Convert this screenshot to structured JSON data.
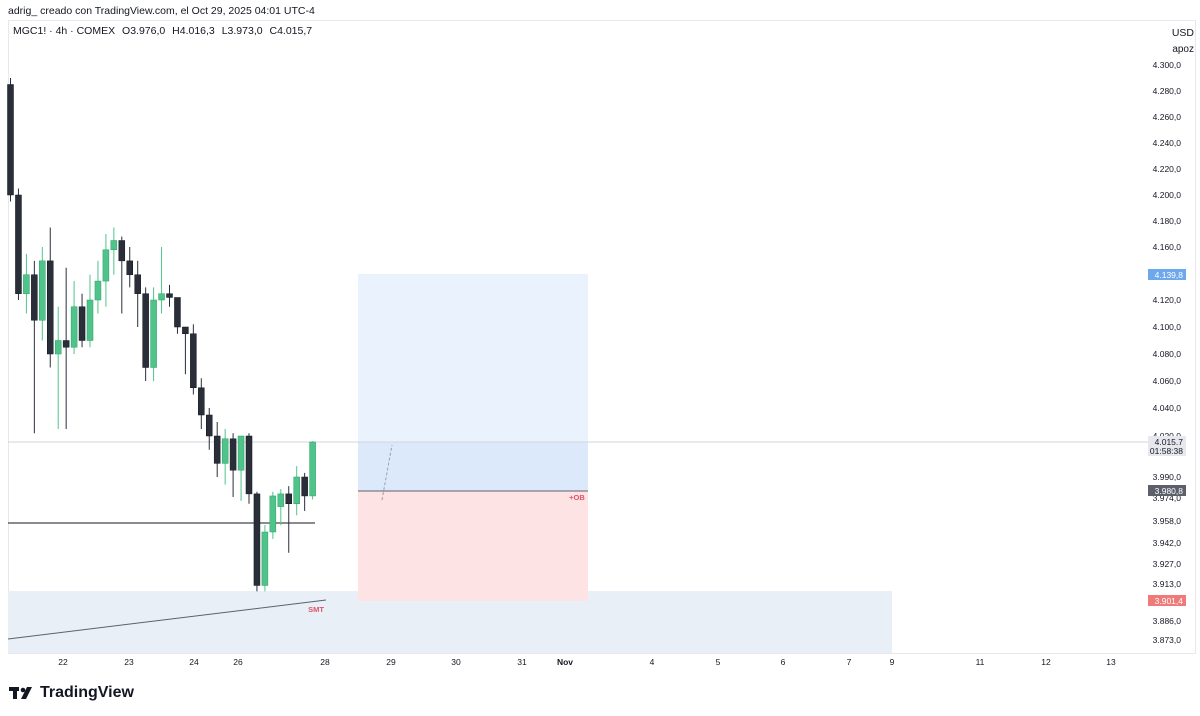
{
  "header": {
    "caption": "adrig_ creado con TradingView.com, el Oct 29, 2025 04:01 UTC-4"
  },
  "legend": {
    "symbol": "MGC1! · 4h · COMEX",
    "open": "O3.976,0",
    "high": "H4.016,3",
    "low": "L3.973,0",
    "close": "C4.015,7"
  },
  "axis_header": {
    "currency": "USD",
    "label": "apoz"
  },
  "brand": {
    "name": "TradingView",
    "icon": "tradingview-logo-icon"
  },
  "colors": {
    "up": "#4fc48a",
    "down": "#2a2e39",
    "target_zone": "#dbe9fb",
    "stop_zone": "#fde3e3",
    "ob_label": "#e0536a",
    "smt_label": "#e0536a",
    "badge_blue": "#6ea8ec",
    "badge_dark": "#5d606b",
    "badge_red": "#f07a7a"
  },
  "chart_data": {
    "type": "candlestick",
    "timeframe": "4h",
    "yaxis_ticks": [
      "4.300,0",
      "4.280,0",
      "4.260,0",
      "4.240,0",
      "4.220,0",
      "4.200,0",
      "4.180,0",
      "4.160,0",
      "4.120,0",
      "4.100,0",
      "4.080,0",
      "4.060,0",
      "4.040,0",
      "4.020,0",
      "3.990,0",
      "3.974,0",
      "3.958,0",
      "3.942,0",
      "3.927,0",
      "3.913,0",
      "3.886,0",
      "3.873,0"
    ],
    "xaxis_ticks": [
      "22",
      "23",
      "24",
      "26",
      "28",
      "29",
      "30",
      "31",
      "Nov",
      "4",
      "5",
      "6",
      "7",
      "9",
      "11",
      "12",
      "13"
    ],
    "price_badges": [
      {
        "text": "4.139,8",
        "value": 4139.8,
        "style": "blue"
      },
      {
        "text": "4.015,7",
        "value": 4015.7,
        "style": "grey"
      },
      {
        "text": "01:58:38",
        "value": 4009,
        "style": "grey"
      },
      {
        "text": "3.980,8",
        "value": 3980.8,
        "style": "dark"
      },
      {
        "text": "3.901,4",
        "value": 3901.4,
        "style": "red"
      }
    ],
    "annotations": [
      {
        "text": "+OB",
        "value": 3980.8
      },
      {
        "text": "SMT",
        "value": 3897
      }
    ],
    "candles": [
      {
        "o": 4285,
        "h": 4290,
        "l": 4195,
        "c": 4200
      },
      {
        "o": 4200,
        "h": 4205,
        "l": 4120,
        "c": 4125
      },
      {
        "o": 4125,
        "h": 4155,
        "l": 4110,
        "c": 4140
      },
      {
        "o": 4140,
        "h": 4150,
        "l": 4022,
        "c": 4105
      },
      {
        "o": 4105,
        "h": 4160,
        "l": 4090,
        "c": 4150
      },
      {
        "o": 4150,
        "h": 4175,
        "l": 4070,
        "c": 4080
      },
      {
        "o": 4080,
        "h": 4115,
        "l": 4025,
        "c": 4090
      },
      {
        "o": 4090,
        "h": 4145,
        "l": 4025,
        "c": 4085
      },
      {
        "o": 4085,
        "h": 4135,
        "l": 4080,
        "c": 4115
      },
      {
        "o": 4115,
        "h": 4125,
        "l": 4085,
        "c": 4090
      },
      {
        "o": 4090,
        "h": 4140,
        "l": 4085,
        "c": 4120
      },
      {
        "o": 4120,
        "h": 4150,
        "l": 4110,
        "c": 4135
      },
      {
        "o": 4135,
        "h": 4170,
        "l": 4115,
        "c": 4158
      },
      {
        "o": 4158,
        "h": 4175,
        "l": 4140,
        "c": 4165
      },
      {
        "o": 4165,
        "h": 4168,
        "l": 4110,
        "c": 4150
      },
      {
        "o": 4150,
        "h": 4160,
        "l": 4130,
        "c": 4140
      },
      {
        "o": 4140,
        "h": 4150,
        "l": 4100,
        "c": 4125
      },
      {
        "o": 4125,
        "h": 4130,
        "l": 4060,
        "c": 4070
      },
      {
        "o": 4070,
        "h": 4130,
        "l": 4060,
        "c": 4120
      },
      {
        "o": 4120,
        "h": 4160,
        "l": 4110,
        "c": 4125
      },
      {
        "o": 4125,
        "h": 4132,
        "l": 4115,
        "c": 4122
      },
      {
        "o": 4122,
        "h": 4120,
        "l": 4095,
        "c": 4100
      },
      {
        "o": 4100,
        "h": 4098,
        "l": 4065,
        "c": 4095
      },
      {
        "o": 4095,
        "h": 4102,
        "l": 4050,
        "c": 4055
      },
      {
        "o": 4055,
        "h": 4062,
        "l": 4025,
        "c": 4035
      },
      {
        "o": 4035,
        "h": 4040,
        "l": 4010,
        "c": 4020
      },
      {
        "o": 4020,
        "h": 4030,
        "l": 3990,
        "c": 4000
      },
      {
        "o": 4000,
        "h": 4025,
        "l": 3985,
        "c": 4018
      },
      {
        "o": 4018,
        "h": 4022,
        "l": 3975,
        "c": 3995
      },
      {
        "o": 3995,
        "h": 4020,
        "l": 3972,
        "c": 4020
      },
      {
        "o": 4020,
        "h": 4022,
        "l": 3970,
        "c": 3978
      },
      {
        "o": 3978,
        "h": 3980,
        "l": 3908,
        "c": 3912
      },
      {
        "o": 3912,
        "h": 3955,
        "l": 3908,
        "c": 3950
      },
      {
        "o": 3950,
        "h": 3980,
        "l": 3945,
        "c": 3976
      },
      {
        "o": 3968,
        "h": 3982,
        "l": 3955,
        "c": 3978
      },
      {
        "o": 3978,
        "h": 3984,
        "l": 3935,
        "c": 3970
      },
      {
        "o": 3970,
        "h": 3998,
        "l": 3962,
        "c": 3990
      },
      {
        "o": 3990,
        "h": 3993,
        "l": 3965,
        "c": 3976
      },
      {
        "o": 3976,
        "h": 4016.3,
        "l": 3973,
        "c": 4015.7
      }
    ],
    "grid": false,
    "legend_placement": "top-left"
  }
}
